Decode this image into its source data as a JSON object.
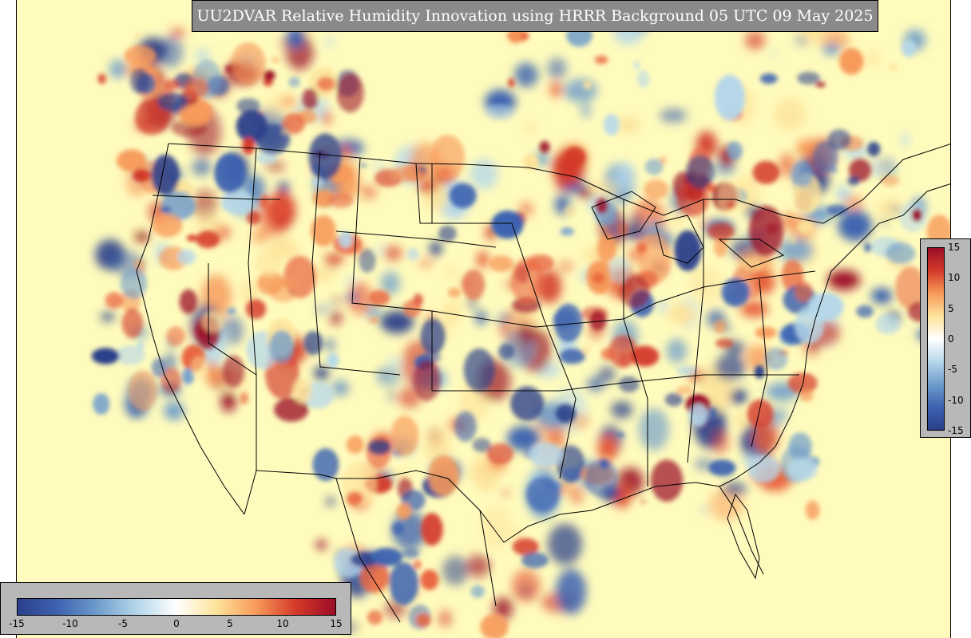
{
  "map": {
    "title": "UU2DVAR Relative Humidity Innovation using HRRR Background 05 UTC 09 May 2025",
    "background_color": "#fffbbd",
    "border_color": "#000000"
  },
  "colorbar": {
    "min": -15,
    "max": 15,
    "tick_labels": [
      "-15",
      "-10",
      "-5",
      "0",
      "5",
      "10",
      "15"
    ],
    "colors": [
      "#2b3f8a",
      "#3c62b0",
      "#6e9ccb",
      "#b5d7ea",
      "#ffffff",
      "#fde39a",
      "#f79a5a",
      "#d43a2a",
      "#9c0d26"
    ]
  }
}
